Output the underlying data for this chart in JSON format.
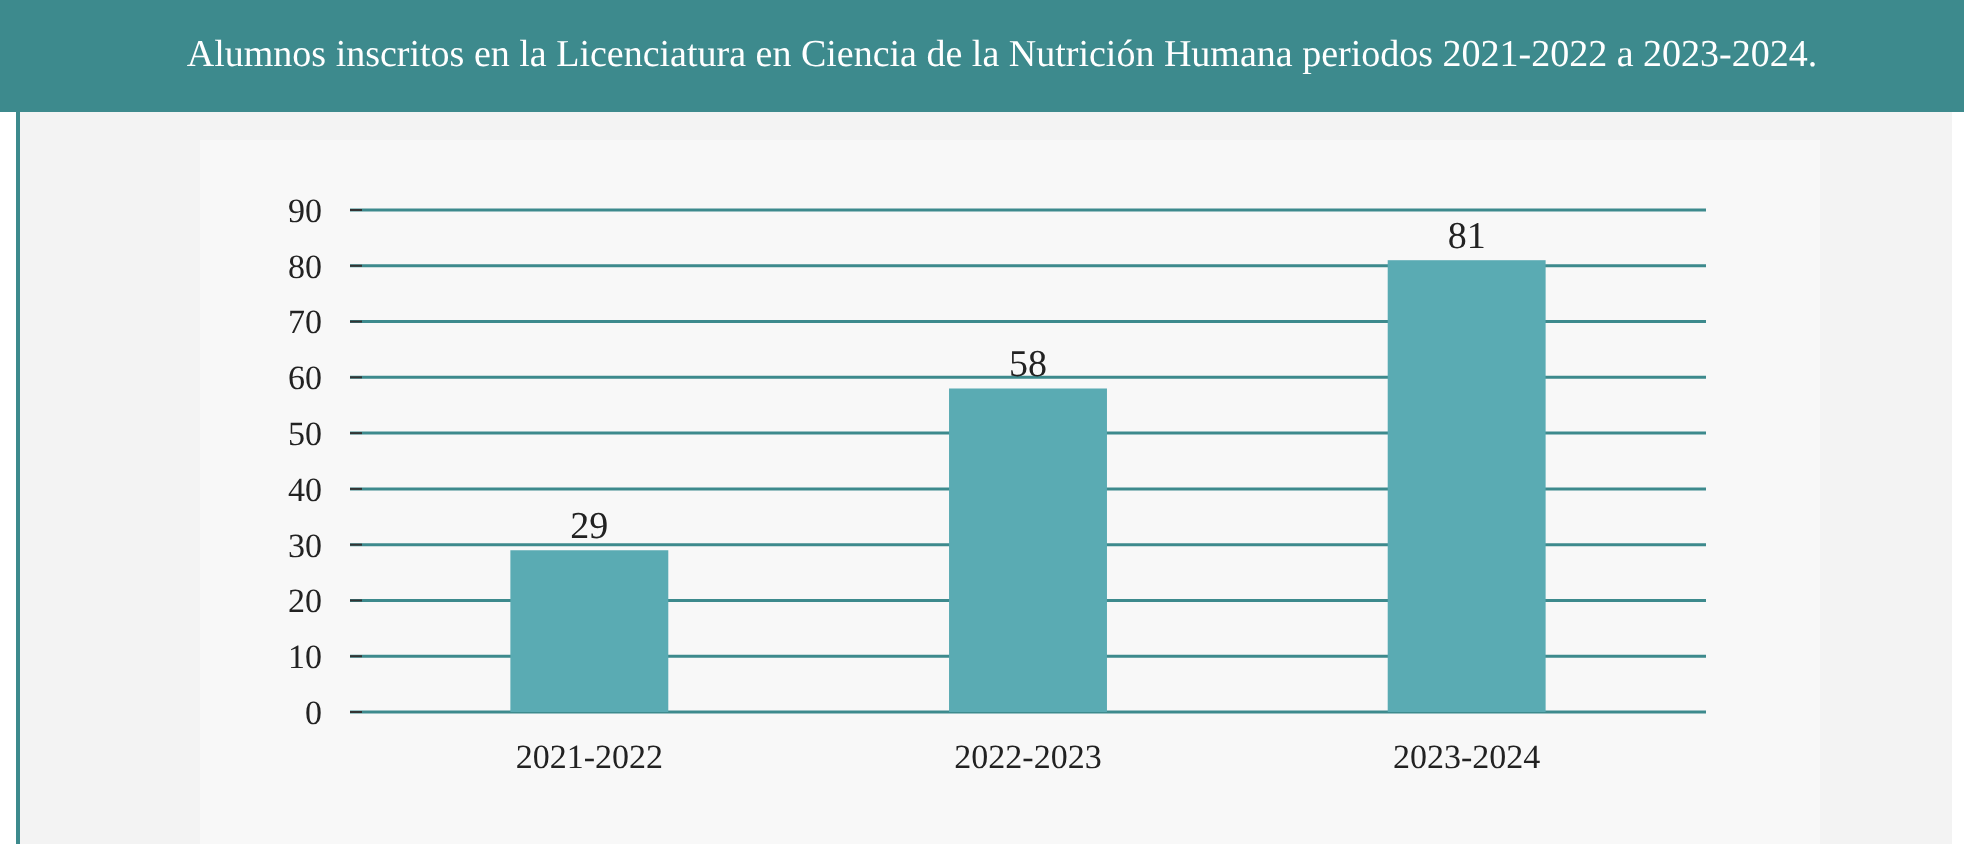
{
  "chart_data": {
    "type": "bar",
    "title": "Alumnos inscritos en la Licenciatura en Ciencia de la Nutrición Humana periodos 2021-2022 a 2023-2024.",
    "categories": [
      "2021-2022",
      "2022-2023",
      "2023-2024"
    ],
    "values": [
      29,
      58,
      81
    ],
    "color": "#5aabb3",
    "ylim": [
      0,
      90
    ],
    "yticks": [
      0,
      10,
      20,
      30,
      40,
      50,
      60,
      70,
      80,
      90
    ],
    "grid": "y",
    "data_labels": true
  }
}
